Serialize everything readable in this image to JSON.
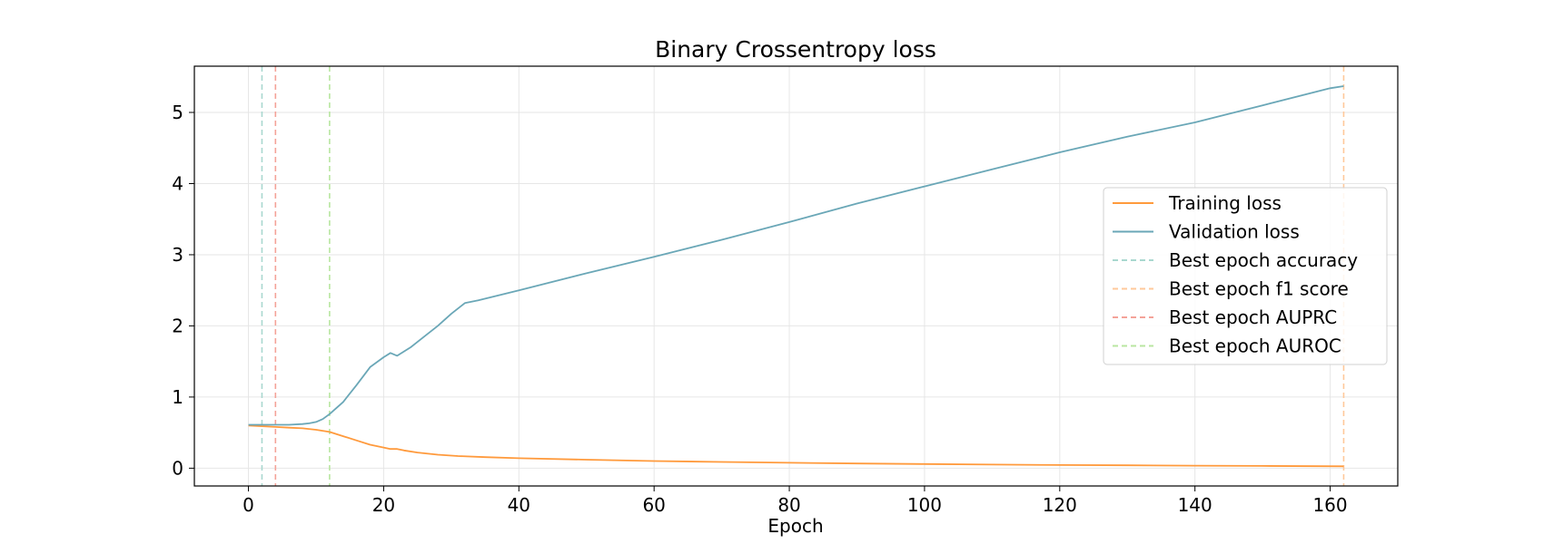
{
  "chart_data": {
    "type": "line",
    "title": "Binary Crossentropy loss",
    "xlabel": "Epoch",
    "ylabel": "",
    "xlim": [
      -8,
      170
    ],
    "ylim": [
      -0.25,
      5.65
    ],
    "xticks": [
      0,
      20,
      40,
      60,
      80,
      100,
      120,
      140,
      160
    ],
    "yticks": [
      0,
      1,
      2,
      3,
      4,
      5
    ],
    "grid": true,
    "legend_position": "right",
    "series": [
      {
        "name": "Training loss",
        "color": "#ff9a3c",
        "style": "solid",
        "x": [
          0,
          2,
          4,
          6,
          8,
          10,
          12,
          14,
          16,
          18,
          20,
          21,
          22,
          23,
          25,
          28,
          31,
          35,
          40,
          50,
          60,
          70,
          80,
          90,
          100,
          110,
          120,
          130,
          140,
          150,
          162
        ],
        "y": [
          0.6,
          0.59,
          0.58,
          0.57,
          0.56,
          0.54,
          0.51,
          0.45,
          0.39,
          0.33,
          0.29,
          0.27,
          0.27,
          0.25,
          0.22,
          0.19,
          0.17,
          0.155,
          0.14,
          0.12,
          0.1,
          0.088,
          0.076,
          0.066,
          0.058,
          0.051,
          0.045,
          0.04,
          0.035,
          0.031,
          0.027
        ]
      },
      {
        "name": "Validation loss",
        "color": "#6aa7b7",
        "style": "solid",
        "x": [
          0,
          2,
          4,
          6,
          8,
          9,
          10,
          11,
          12,
          14,
          16,
          18,
          20,
          21,
          22,
          24,
          26,
          28,
          30,
          32,
          34,
          40,
          50,
          60,
          70,
          80,
          90,
          100,
          110,
          120,
          130,
          140,
          150,
          160,
          162
        ],
        "y": [
          0.61,
          0.61,
          0.61,
          0.61,
          0.62,
          0.63,
          0.65,
          0.69,
          0.76,
          0.93,
          1.17,
          1.42,
          1.56,
          1.62,
          1.58,
          1.7,
          1.85,
          2.0,
          2.17,
          2.32,
          2.36,
          2.5,
          2.74,
          2.97,
          3.21,
          3.46,
          3.72,
          3.96,
          4.2,
          4.44,
          4.66,
          4.86,
          5.1,
          5.34,
          5.37
        ]
      }
    ],
    "vlines": [
      {
        "name": "Best epoch accuracy",
        "x": 2,
        "color": "#a9d8cf",
        "style": "dashed"
      },
      {
        "name": "Best epoch f1 score",
        "x": 162,
        "color": "#ffc89a",
        "style": "dashed"
      },
      {
        "name": "Best epoch AUPRC",
        "x": 4,
        "color": "#f4a399",
        "style": "dashed"
      },
      {
        "name": "Best epoch AUROC",
        "x": 12,
        "color": "#b8e6a0",
        "style": "dashed"
      }
    ]
  }
}
